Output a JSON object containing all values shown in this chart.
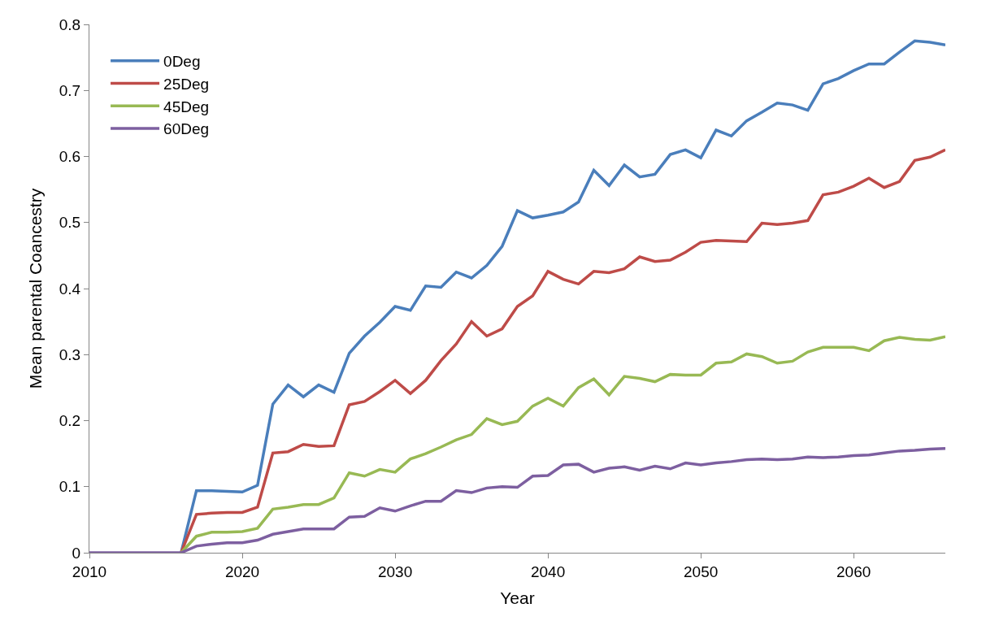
{
  "chart_data": {
    "type": "line",
    "xlabel": "Year",
    "ylabel": "Mean parental Coancestry",
    "x": [
      2010,
      2011,
      2012,
      2013,
      2014,
      2015,
      2016,
      2017,
      2018,
      2019,
      2020,
      2021,
      2022,
      2023,
      2024,
      2025,
      2026,
      2027,
      2028,
      2029,
      2030,
      2031,
      2032,
      2033,
      2034,
      2035,
      2036,
      2037,
      2038,
      2039,
      2040,
      2041,
      2042,
      2043,
      2044,
      2045,
      2046,
      2047,
      2048,
      2049,
      2050,
      2051,
      2052,
      2053,
      2054,
      2055,
      2056,
      2057,
      2058,
      2059,
      2060,
      2061,
      2062,
      2063,
      2064,
      2065,
      2066
    ],
    "series": [
      {
        "name": "0Deg",
        "color": "#4a7ebb",
        "values": [
          null,
          null,
          null,
          null,
          null,
          null,
          0,
          0.094,
          0.094,
          0.093,
          0.092,
          0.102,
          0.225,
          0.254,
          0.236,
          0.254,
          0.243,
          0.302,
          0.328,
          0.349,
          0.373,
          0.367,
          0.404,
          0.402,
          0.425,
          0.416,
          0.435,
          0.464,
          0.518,
          0.507,
          0.511,
          0.516,
          0.531,
          0.579,
          0.556,
          0.587,
          0.569,
          0.573,
          0.603,
          0.61,
          0.598,
          0.64,
          0.631,
          0.654,
          0.667,
          0.681,
          0.678,
          0.67,
          0.71,
          0.718,
          0.73,
          0.74,
          0.74,
          0.758,
          0.775,
          0.773,
          0.769
        ]
      },
      {
        "name": "25Deg",
        "color": "#be4b48",
        "values": [
          null,
          null,
          null,
          null,
          null,
          null,
          0,
          0.058,
          0.06,
          0.061,
          0.061,
          0.069,
          0.151,
          0.153,
          0.164,
          0.161,
          0.162,
          0.224,
          0.229,
          0.244,
          0.261,
          0.241,
          0.261,
          0.291,
          0.316,
          0.35,
          0.328,
          0.339,
          0.373,
          0.389,
          0.426,
          0.414,
          0.407,
          0.426,
          0.424,
          0.43,
          0.448,
          0.441,
          0.443,
          0.455,
          0.47,
          0.473,
          0.472,
          0.471,
          0.499,
          0.497,
          0.499,
          0.503,
          0.542,
          0.546,
          0.555,
          0.567,
          0.553,
          0.562,
          0.594,
          0.599,
          0.61
        ]
      },
      {
        "name": "45Deg",
        "color": "#98b954",
        "values": [
          null,
          null,
          null,
          null,
          null,
          null,
          0,
          0.025,
          0.031,
          0.031,
          0.032,
          0.037,
          0.066,
          0.069,
          0.073,
          0.073,
          0.083,
          0.121,
          0.116,
          0.126,
          0.122,
          0.142,
          0.15,
          0.16,
          0.171,
          0.179,
          0.203,
          0.194,
          0.199,
          0.222,
          0.234,
          0.222,
          0.25,
          0.263,
          0.239,
          0.267,
          0.264,
          0.259,
          0.27,
          0.269,
          0.269,
          0.287,
          0.289,
          0.301,
          0.297,
          0.287,
          0.29,
          0.304,
          0.311,
          0.311,
          0.311,
          0.306,
          0.321,
          0.326,
          0.323,
          0.322,
          0.327
        ]
      },
      {
        "name": "60Deg",
        "color": "#7d5fa0",
        "values": [
          0,
          0,
          0,
          0,
          0,
          0,
          0,
          0.01,
          0.013,
          0.015,
          0.015,
          0.019,
          0.028,
          0.032,
          0.036,
          0.036,
          0.036,
          0.054,
          0.055,
          0.068,
          0.063,
          0.071,
          0.078,
          0.078,
          0.094,
          0.091,
          0.098,
          0.1,
          0.099,
          0.116,
          0.117,
          0.133,
          0.134,
          0.122,
          0.128,
          0.13,
          0.125,
          0.131,
          0.127,
          0.136,
          0.133,
          0.136,
          0.138,
          0.141,
          0.142,
          0.141,
          0.142,
          0.145,
          0.144,
          0.145,
          0.147,
          0.148,
          0.151,
          0.154,
          0.155,
          0.157,
          0.158
        ]
      }
    ],
    "xlim": [
      2010,
      2066
    ],
    "xticks": [
      2010,
      2020,
      2030,
      2040,
      2050,
      2060
    ],
    "ylim": [
      0,
      0.8
    ],
    "yticks": [
      0,
      0.1,
      0.2,
      0.3,
      0.4,
      0.5,
      0.6,
      0.7,
      0.8
    ],
    "legend": "top left",
    "marker": "none",
    "line_style": "solid"
  }
}
